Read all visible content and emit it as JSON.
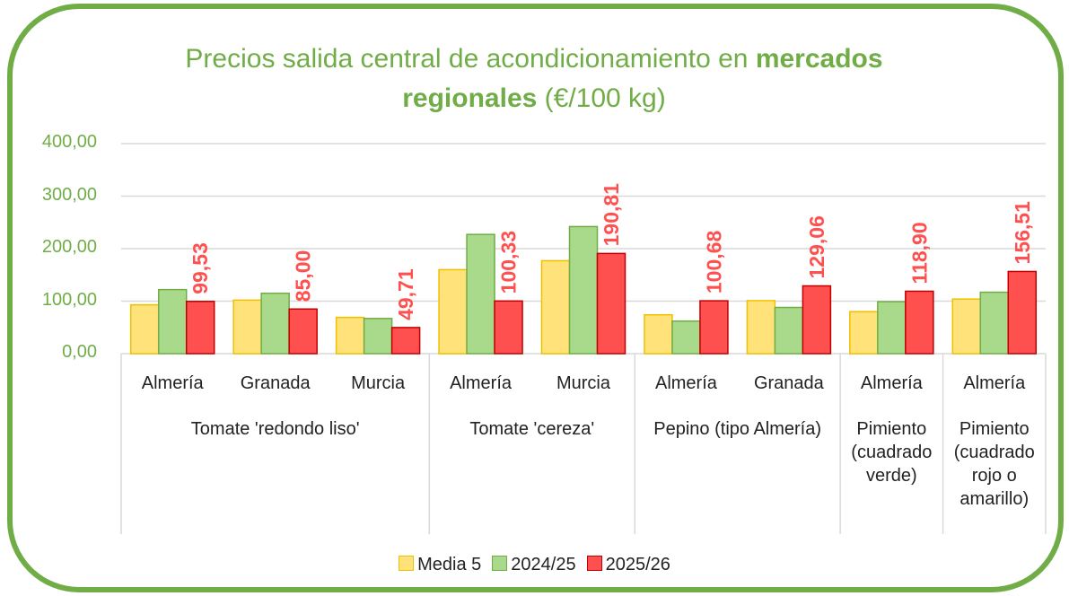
{
  "chart_data": {
    "type": "bar",
    "title": [
      {
        "text": "Precios salida central de acondicionamiento en ",
        "bold": false
      },
      {
        "text": "mercados regionales",
        "bold": true
      },
      {
        "text": " (€/100 kg)",
        "bold": false
      }
    ],
    "categories": [
      "Almería",
      "Granada",
      "Murcia",
      "Almería",
      "Murcia",
      "Almería",
      "Granada",
      "Almería",
      "Almería"
    ],
    "groups": [
      {
        "label": "Tomate 'redondo liso'",
        "span": 3
      },
      {
        "label": "Tomate 'cereza'",
        "span": 2
      },
      {
        "label": "Pepino (tipo Almería)",
        "span": 2
      },
      {
        "label": "Pimiento (cuadrado verde)",
        "span": 1
      },
      {
        "label": "Pimiento (cuadrado rojo o amarillo)",
        "span": 1
      }
    ],
    "series": [
      {
        "name": "Media 5",
        "color": "#ffe37a",
        "border": "#f0c000",
        "values": [
          93,
          102,
          69,
          160,
          177,
          74,
          101,
          80,
          104
        ]
      },
      {
        "name": "2024/25",
        "color": "#a9d98b",
        "border": "#70ad47",
        "values": [
          122,
          115,
          67,
          227,
          242,
          62,
          88,
          99,
          117
        ]
      },
      {
        "name": "2025/26",
        "color": "#ff5050",
        "border": "#c00000",
        "values": [
          99.53,
          85.0,
          49.71,
          100.33,
          190.81,
          100.68,
          129.06,
          118.9,
          156.51
        ],
        "value_labels": [
          "99,53",
          "85,00",
          "49,71",
          "100,33",
          "190,81",
          "100,68",
          "129,06",
          "118,90",
          "156,51"
        ],
        "label_color": "#ff5050"
      }
    ],
    "ylim": [
      0,
      400
    ],
    "yticks": [
      {
        "value": 0,
        "label": "0,00"
      },
      {
        "value": 100,
        "label": "100,00"
      },
      {
        "value": 200,
        "label": "200,00"
      },
      {
        "value": 300,
        "label": "300,00"
      },
      {
        "value": 400,
        "label": "400,00"
      }
    ],
    "grid": true,
    "legend": "bottom"
  }
}
